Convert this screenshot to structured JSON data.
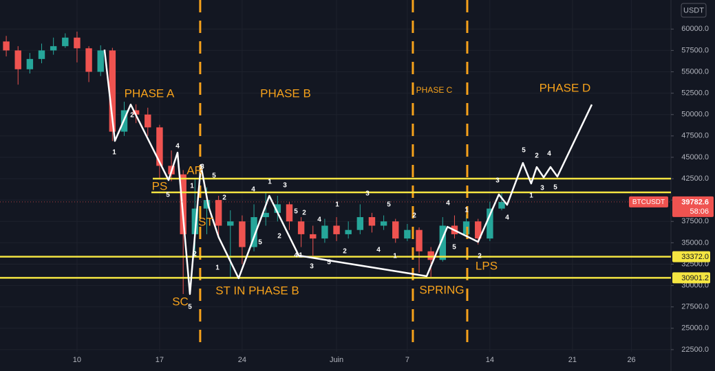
{
  "chart_data": {
    "type": "candlestick",
    "currency": "USDT",
    "symbol": "BTCUSDT",
    "last_price": 39782.6,
    "countdown": "58:06",
    "xlim": [
      3.47,
      60.35
    ],
    "ylim": [
      20000,
      63400
    ],
    "xticks": [
      10,
      17,
      24,
      {
        "value": 32,
        "label": "Juin"
      },
      {
        "value": 38,
        "label": "7"
      },
      {
        "value": 45,
        "label": "14"
      },
      {
        "value": 52,
        "label": "21"
      },
      {
        "value": 57,
        "label": "26"
      }
    ],
    "yticks": [
      {
        "value": 22500,
        "label": "22500.0"
      },
      {
        "value": 25000,
        "label": "25000.0"
      },
      {
        "value": 27500,
        "label": "27500.0"
      },
      {
        "value": 30000,
        "label": "30000.0"
      },
      {
        "value": 32500,
        "label": "32500.0"
      },
      {
        "value": 35000,
        "label": "35000.0"
      },
      {
        "value": 37500,
        "label": "37500.0"
      },
      {
        "value": 40000,
        "label": "40000.0"
      },
      {
        "value": 42500,
        "label": "42500.0"
      },
      {
        "value": 45000,
        "label": "45000.0"
      },
      {
        "value": 47500,
        "label": "47500.0"
      },
      {
        "value": 50000,
        "label": "50000.0"
      },
      {
        "value": 52500,
        "label": "52500.0"
      },
      {
        "value": 55000,
        "label": "55000.0"
      },
      {
        "value": 57500,
        "label": "57500.0"
      },
      {
        "value": 60000,
        "label": "60000.0"
      }
    ],
    "grid": true,
    "up_color": "#26a69a",
    "down_color": "#ef5350",
    "candles": {
      "x": [
        4,
        5,
        6,
        7,
        8,
        9,
        10,
        11,
        12,
        13,
        14,
        15,
        16,
        17,
        18,
        19,
        20,
        21,
        22,
        23,
        24,
        25,
        26,
        27,
        28,
        29,
        30,
        31,
        32,
        33,
        34,
        35,
        36,
        37,
        38,
        39,
        40,
        41,
        42,
        43,
        44,
        45,
        46
      ],
      "open": [
        58550,
        57500,
        55300,
        56500,
        57500,
        58000,
        59000,
        57750,
        55000,
        57500,
        48000,
        50500,
        50000,
        48500,
        44000,
        43000,
        36000,
        39000,
        40000,
        37000,
        37500,
        34500,
        38000,
        38500,
        39500,
        37500,
        36000,
        35500,
        37000,
        36000,
        36500,
        38000,
        37000,
        37500,
        35500,
        36500,
        34000,
        33000,
        37000,
        36000,
        37500,
        35500,
        39000
      ],
      "high": [
        59200,
        58000,
        57200,
        58300,
        59000,
        59500,
        59700,
        58000,
        58100,
        57800,
        51500,
        51200,
        50800,
        48800,
        45800,
        43500,
        42500,
        41500,
        40500,
        38800,
        38200,
        39500,
        40900,
        40500,
        39800,
        38000,
        37000,
        37800,
        38000,
        37500,
        39500,
        38500,
        38200,
        37800,
        37200,
        36800,
        34500,
        38000,
        38200,
        38300,
        37800,
        39800,
        40900
      ],
      "low": [
        56800,
        53500,
        54800,
        56000,
        57000,
        57800,
        56100,
        53800,
        54500,
        46900,
        47500,
        49000,
        47500,
        42500,
        42200,
        29000,
        33500,
        36000,
        35500,
        30900,
        32500,
        34000,
        37000,
        37500,
        36500,
        34500,
        33500,
        35000,
        35200,
        35500,
        36000,
        36200,
        36500,
        35000,
        35200,
        31500,
        31000,
        32800,
        35500,
        35600,
        34800,
        35200,
        38800
      ],
      "close": [
        57500,
        55300,
        56500,
        57500,
        58000,
        59000,
        57750,
        55000,
        57500,
        48000,
        50500,
        50000,
        48500,
        44000,
        43000,
        36000,
        39000,
        40000,
        37000,
        37500,
        34500,
        38000,
        38500,
        39500,
        37500,
        36000,
        35500,
        37000,
        36000,
        36500,
        38000,
        37000,
        37500,
        35500,
        36500,
        34000,
        33000,
        37000,
        36000,
        37500,
        35500,
        39000,
        39782.6
      ]
    },
    "wave_line": {
      "color": "#ffffff",
      "x": [
        12.33,
        13.21,
        14.55,
        17.76,
        18.52,
        19.57,
        20.5,
        21.14,
        22.0,
        23.7,
        26.3,
        28.8,
        39.64,
        41.4,
        44.0,
        45.76,
        46.46,
        47.8,
        48.5,
        48.97,
        49.56,
        50.14,
        50.72,
        53.64
      ],
      "y": [
        57590,
        46910,
        51170,
        42330,
        45550,
        29000,
        44100,
        39280,
        35670,
        30850,
        40490,
        33500,
        31090,
        36870,
        35110,
        40650,
        39440,
        44340,
        41930,
        43860,
        42650,
        43860,
        42740,
        51170
      ]
    },
    "levels": {
      "color": "#f5e642",
      "values": [
        42500,
        40900,
        33372,
        30901.2
      ],
      "value_labels": [
        null,
        null,
        "33372.0",
        "30901.2"
      ]
    },
    "phase_lines": {
      "color": "#f7a21b",
      "x": [
        20.44,
        38.47,
        43.08
      ]
    },
    "annotations": [
      "PHASE A",
      "PHASE B",
      "PHASE C",
      "PHASE D",
      "PS",
      "AR",
      "ST",
      "SC",
      "ST IN PHASE B",
      "SPRING",
      "LPS"
    ],
    "wave_labels": [
      "1",
      "2",
      "4",
      "3",
      "5",
      "1",
      "5",
      "2",
      "5",
      "1",
      "2",
      "4",
      "1",
      "3",
      "5",
      "2",
      "5",
      "2",
      "4",
      "1",
      "3",
      "5",
      "4",
      "1",
      "3",
      "5",
      "2",
      "4",
      "1",
      "2",
      "4",
      "1",
      "5",
      "2",
      "3",
      "4",
      "5",
      "2",
      "4",
      "1",
      "3",
      "5"
    ]
  }
}
